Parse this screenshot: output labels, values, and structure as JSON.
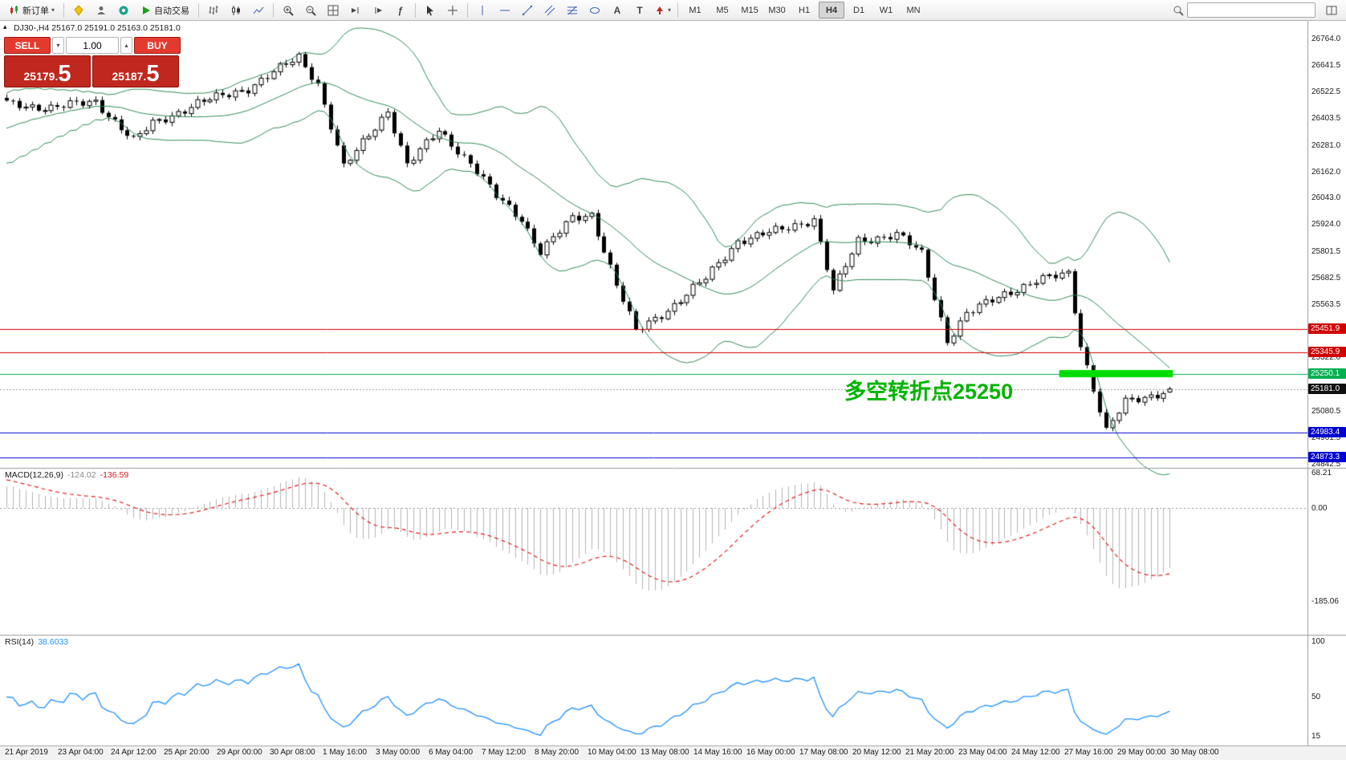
{
  "toolbar": {
    "new_order_label": "新订单",
    "autotrade_label": "自动交易",
    "timeframes": [
      "M1",
      "M5",
      "M15",
      "M30",
      "H1",
      "H4",
      "D1",
      "W1",
      "MN"
    ],
    "active_timeframe": "H4",
    "search_placeholder": ""
  },
  "icons": {
    "caret_down": "▾",
    "caret_up": "▴",
    "indicators": "ƒ",
    "text_tool": "A",
    "label_tool": "T"
  },
  "symbol_bar": {
    "text": "DJ30-,H4 25167.0 25191.0 25163.0 25181.0",
    "marker": "▴"
  },
  "trade_panel": {
    "sell_label": "SELL",
    "buy_label": "BUY",
    "volume": "1.00",
    "sell_price": "25179.5",
    "buy_price": "25187.5"
  },
  "annotation": {
    "text": "多空转折点25250",
    "color": "#00b400"
  },
  "chart_data": {
    "type": "candlestick",
    "symbol": "DJ30-",
    "timeframe": "H4",
    "ohlc_readout": {
      "open": 25167.0,
      "high": 25191.0,
      "low": 25163.0,
      "close": 25181.0
    },
    "bid": 25179.5,
    "ask": 25187.5,
    "price_range": [
      24842.5,
      26764.0
    ],
    "price_axis_ticks": [
      26764.0,
      26641.5,
      26522.5,
      26403.5,
      26281.0,
      26162.0,
      26043.0,
      25924.0,
      25801.5,
      25682.5,
      25563.5,
      25322.0,
      25080.5,
      24961.5,
      24842.5
    ],
    "bars_total": 184,
    "close_path": [
      [
        0,
        26470
      ],
      [
        7,
        26450
      ],
      [
        14,
        26480
      ],
      [
        20,
        26300
      ],
      [
        23,
        26380
      ],
      [
        30,
        26470
      ],
      [
        38,
        26540
      ],
      [
        46,
        26680
      ],
      [
        49,
        26560
      ],
      [
        53,
        26180
      ],
      [
        60,
        26440
      ],
      [
        63,
        26190
      ],
      [
        68,
        26350
      ],
      [
        73,
        26200
      ],
      [
        77,
        26050
      ],
      [
        81,
        25950
      ],
      [
        84,
        25800
      ],
      [
        89,
        25950
      ],
      [
        92,
        25970
      ],
      [
        96,
        25650
      ],
      [
        99,
        25440
      ],
      [
        105,
        25560
      ],
      [
        110,
        25680
      ],
      [
        115,
        25850
      ],
      [
        122,
        25900
      ],
      [
        127,
        25950
      ],
      [
        130,
        25620
      ],
      [
        134,
        25850
      ],
      [
        140,
        25880
      ],
      [
        144,
        25790
      ],
      [
        148,
        25400
      ],
      [
        151,
        25520
      ],
      [
        157,
        25610
      ],
      [
        162,
        25670
      ],
      [
        167,
        25700
      ],
      [
        169,
        25380
      ],
      [
        173,
        24990
      ],
      [
        176,
        25120
      ],
      [
        180,
        25150
      ],
      [
        183,
        25181
      ]
    ],
    "bollinger": {
      "period": 20,
      "deviation": 2,
      "color": "#2E8B57"
    },
    "horizontal_lines": [
      {
        "price": 25451.9,
        "color": "#d10000",
        "style": "solid"
      },
      {
        "price": 25345.9,
        "color": "#d10000",
        "style": "solid"
      },
      {
        "price": 25250.1,
        "color": "#00b050",
        "style": "solid"
      },
      {
        "price": 25181.0,
        "color": "#9a9a9a",
        "style": "dotted"
      },
      {
        "price": 24983.4,
        "color": "#0000d1",
        "style": "solid"
      },
      {
        "price": 24873.3,
        "color": "#0000d1",
        "style": "solid"
      }
    ],
    "price_badges": [
      {
        "price": 25451.9,
        "bg": "#d10000"
      },
      {
        "price": 25345.9,
        "bg": "#d10000"
      },
      {
        "price": 25250.1,
        "bg": "#00b050"
      },
      {
        "price": 25181.0,
        "bg": "#101010"
      },
      {
        "price": 24983.4,
        "bg": "#0000d1"
      },
      {
        "price": 24873.3,
        "bg": "#0000d1"
      }
    ],
    "highlight_segment": {
      "price": 25250.1,
      "from_bar": 166,
      "to_bar": 183,
      "color": "#00dc00"
    },
    "time_labels": [
      "21 Apr 2019",
      "23 Apr 04:00",
      "24 Apr 12:00",
      "25 Apr 20:00",
      "29 Apr 00:00",
      "30 Apr 08:00",
      "1 May 16:00",
      "3 May 00:00",
      "6 May 04:00",
      "7 May 12:00",
      "8 May 20:00",
      "10 May 04:00",
      "13 May 08:00",
      "14 May 16:00",
      "16 May 00:00",
      "17 May 08:00",
      "20 May 12:00",
      "21 May 20:00",
      "23 May 04:00",
      "24 May 12:00",
      "27 May 16:00",
      "29 May 00:00",
      "30 May 08:00"
    ],
    "indicators": {
      "macd": {
        "label": "MACD(12,26,9)",
        "value": -124.02,
        "signal": -136.59,
        "fast": 12,
        "slow": 26,
        "smoothing": 9,
        "axis_ticks": [
          68.21,
          0,
          -185.06
        ]
      },
      "rsi": {
        "label": "RSI(14)",
        "value": 38.6033,
        "period": 14,
        "axis_ticks": [
          100,
          50,
          15
        ]
      }
    }
  }
}
